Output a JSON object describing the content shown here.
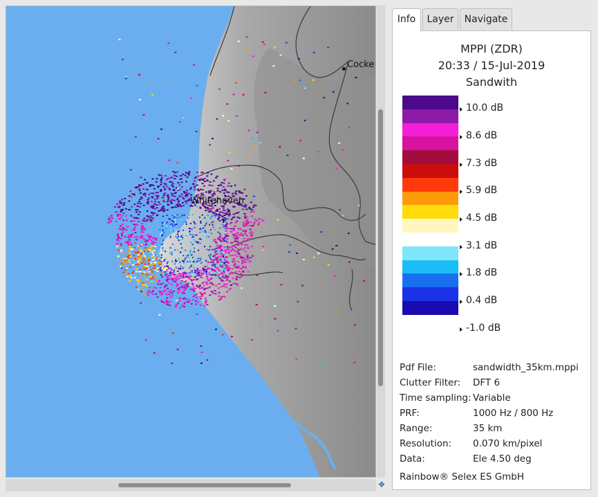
{
  "map": {
    "places": [
      {
        "name": "Cocke"
      },
      {
        "name": "Whitehaven"
      }
    ],
    "colors": {
      "sea": "#6aaef0",
      "land": "#9a9a9a",
      "roads": "#3a3a3a"
    }
  },
  "tabs": [
    {
      "label": "Info",
      "active": true
    },
    {
      "label": "Layer",
      "active": false
    },
    {
      "label": "Navigate",
      "active": false
    }
  ],
  "info": {
    "title": "MPPI (ZDR)",
    "time": "20:33 / 15-Jul-2019",
    "site": "Sandwith",
    "colorbar": {
      "colors": [
        "#4a0a8a",
        "#8e1aa8",
        "#f21ed8",
        "#d6129e",
        "#a20d3d",
        "#cc0d0d",
        "#ff3a0a",
        "#ff9a0a",
        "#ffdc0a",
        "#fff6c0",
        "#ffffff",
        "#7fe6fa",
        "#1abef5",
        "#1a6ff0",
        "#1a33e6",
        "#1a0ab0"
      ],
      "ticks": [
        "10.0 dB",
        "8.6 dB",
        "7.3 dB",
        "5.9 dB",
        "4.5 dB",
        "3.1 dB",
        "1.8 dB",
        "0.4 dB",
        "-1.0 dB"
      ]
    },
    "meta": [
      {
        "key": "Pdf File:",
        "value": "sandwidth_35km.mppi"
      },
      {
        "key": "Clutter Filter:",
        "value": "DFT 6"
      },
      {
        "key": "Time sampling:",
        "value": "Variable"
      },
      {
        "key": "PRF:",
        "value": "1000 Hz / 800 Hz"
      },
      {
        "key": "Range:",
        "value": "35 km"
      },
      {
        "key": "Resolution:",
        "value": "0.070 km/pixel"
      },
      {
        "key": "Data:",
        "value": "Ele 4.50 deg"
      }
    ],
    "footer": "Rainbow® Selex ES GmbH"
  },
  "icons": {
    "corner": "map-pan-icon"
  }
}
